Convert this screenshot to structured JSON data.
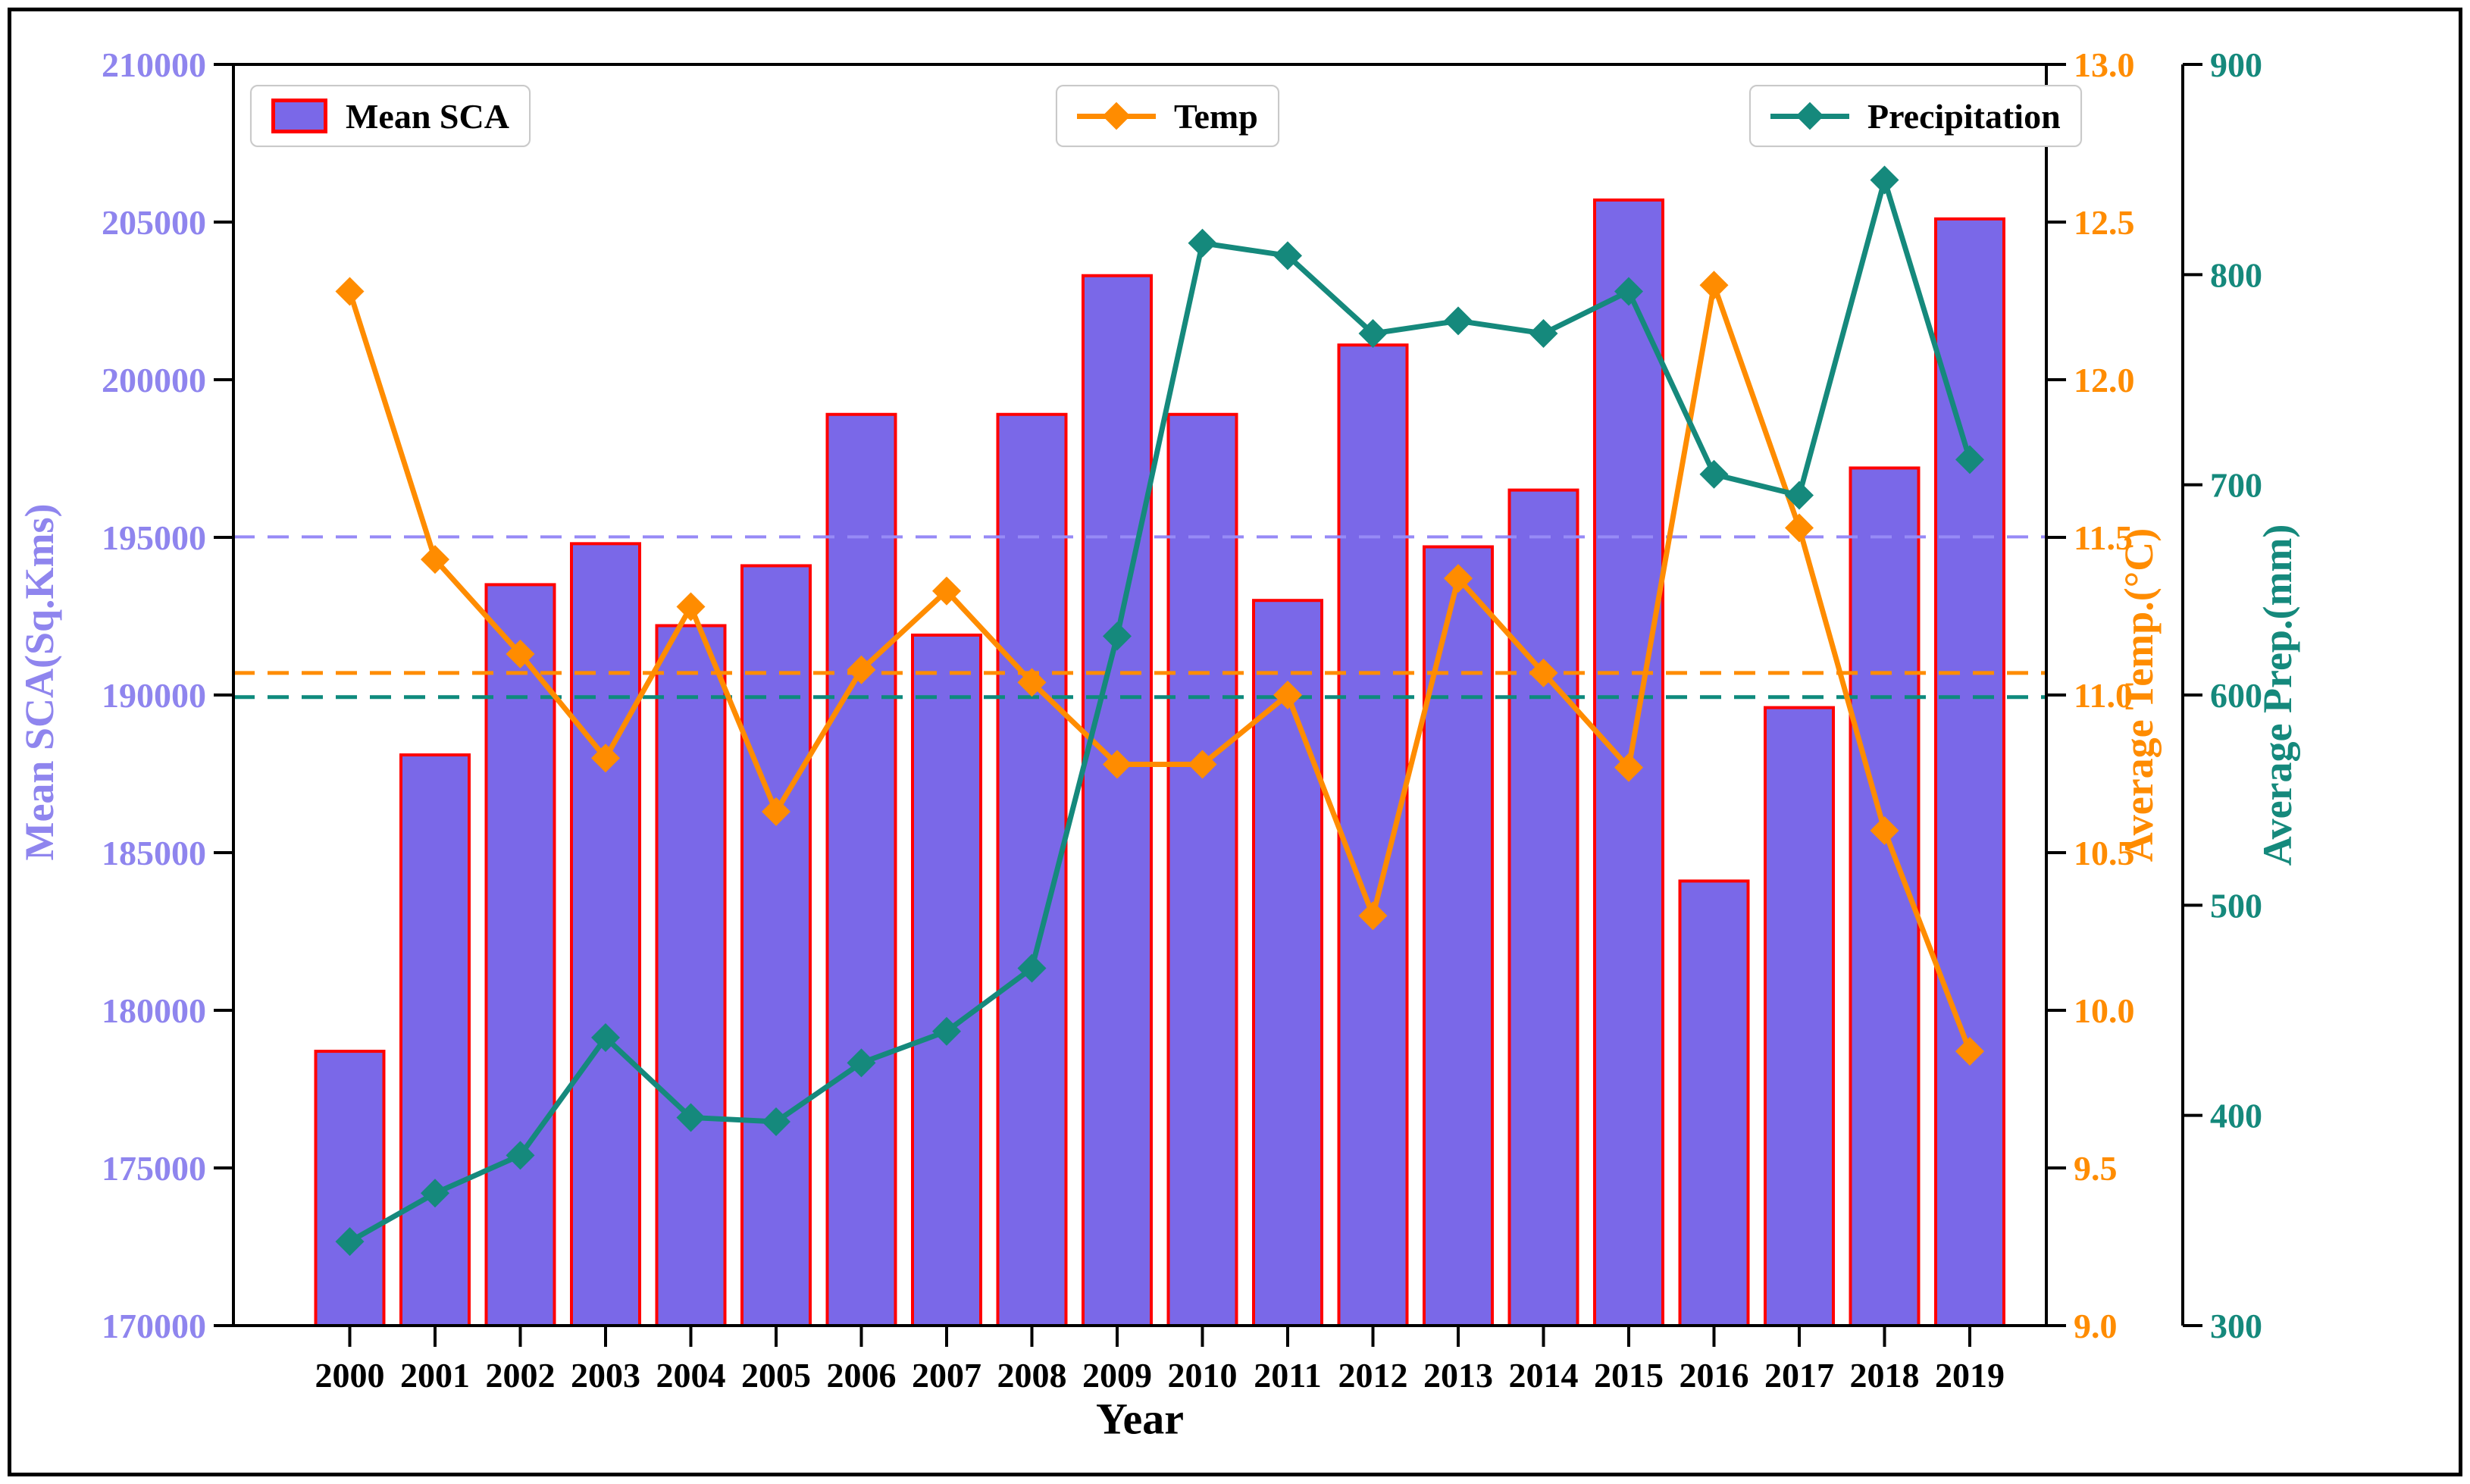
{
  "figure": {
    "background": "#ffffff",
    "frame_color": "#000000"
  },
  "colors": {
    "bar_fill": "#7a68e8",
    "bar_edge": "#ff0000",
    "temp_line": "#ff8c00",
    "prep_line": "#15897c",
    "left_tick_label": "#8f85ee",
    "mean_sca_dash": "#978af6",
    "mean_temp_dash": "#ff8c00",
    "mean_prep_dash": "#0e8a7d",
    "axis_black": "#000000"
  },
  "legend": {
    "mean_sca": "Mean SCA",
    "temp": "Temp",
    "precipitation": "Precipitation"
  },
  "axes_titles": {
    "y_left": "Mean SCA(Sq.Kms)",
    "y_right_temp": "Average Temp.(°C)",
    "y_right_prep": "Average Prep.(mm)",
    "x": "Year"
  },
  "chart_data": {
    "type": "bar",
    "title": "",
    "xlabel": "Year",
    "categories": [
      "2000",
      "2001",
      "2002",
      "2003",
      "2004",
      "2005",
      "2006",
      "2007",
      "2008",
      "2009",
      "2010",
      "2011",
      "2012",
      "2013",
      "2014",
      "2015",
      "2016",
      "2017",
      "2018",
      "2019"
    ],
    "series": [
      {
        "name": "Mean SCA",
        "type": "bar",
        "axis": "y1",
        "values": [
          178700,
          188100,
          193500,
          194800,
          192200,
          194100,
          198900,
          191900,
          198900,
          203300,
          198900,
          193000,
          201100,
          194700,
          196500,
          205700,
          184100,
          189600,
          197200,
          205100
        ]
      },
      {
        "name": "Temp",
        "type": "line",
        "axis": "y2",
        "values": [
          12.28,
          11.43,
          11.13,
          10.8,
          11.28,
          10.63,
          11.08,
          11.33,
          11.04,
          10.78,
          10.78,
          11.0,
          10.3,
          11.37,
          11.07,
          10.77,
          12.3,
          11.53,
          10.57,
          9.87
        ]
      },
      {
        "name": "Precipitation",
        "type": "line",
        "axis": "y3",
        "values": [
          340,
          363,
          381,
          437,
          399,
          397,
          425,
          440,
          470,
          628,
          815,
          809,
          772,
          778,
          772,
          792,
          705,
          695,
          845,
          712
        ]
      }
    ],
    "y1": {
      "label": "Mean SCA(Sq.Kms)",
      "lim": [
        170000,
        210000
      ],
      "ticks": [
        "210000",
        "205000",
        "200000",
        "195000",
        "190000",
        "185000",
        "180000",
        "175000",
        "170000"
      ]
    },
    "y2": {
      "label": "Average Temp.(°C)",
      "lim": [
        9.0,
        13.0
      ],
      "ticks": [
        "13.0",
        "12.5",
        "12.0",
        "11.5",
        "11.0",
        "10.5",
        "10.0",
        "9.5",
        "9.0"
      ]
    },
    "y3": {
      "label": "Average Prep.(mm)",
      "lim": [
        300,
        900
      ],
      "ticks": [
        "900",
        "800",
        "700",
        "600",
        "500",
        "400",
        "300"
      ]
    },
    "mean_lines": [
      {
        "series": "Mean SCA",
        "axis": "y1",
        "value": 195015
      },
      {
        "series": "Temp",
        "axis": "y2",
        "value": 11.07
      },
      {
        "series": "Precipitation",
        "axis": "y3",
        "value": 599
      }
    ],
    "legend_position": "top",
    "grid": false
  }
}
